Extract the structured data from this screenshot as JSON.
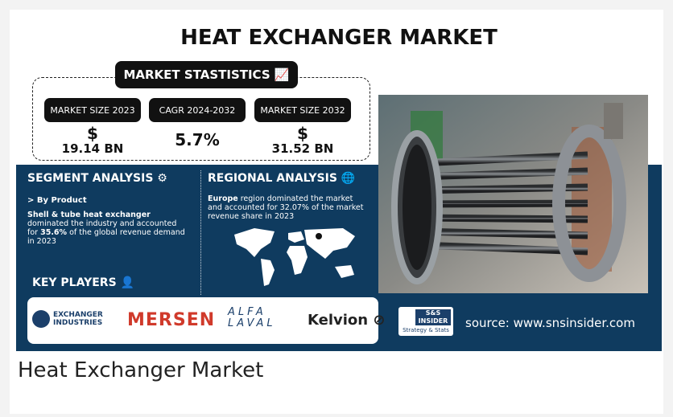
{
  "infographic": {
    "title": "HEAT EXCHANGER MARKET",
    "statistics": {
      "heading": "MARKET STASTISTICS",
      "items": [
        {
          "label": "MARKET SIZE 2023",
          "symbol": "$",
          "value": "19.14 BN"
        },
        {
          "label": "CAGR 2024-2032",
          "value": "5.7%"
        },
        {
          "label": "MARKET SIZE 2032",
          "symbol": "$",
          "value": "31.52 BN"
        }
      ]
    },
    "segment_analysis": {
      "heading": "SEGMENT ANALYSIS",
      "subheading": "> By Product",
      "text": [
        {
          "text": "Shell & tube heat exchanger",
          "bold": true
        },
        {
          "text": " dominated the industry and accounted for ",
          "bold": false
        },
        {
          "text": "35.6%",
          "bold": true
        },
        {
          "text": " of the global revenue demand in 2023",
          "bold": false
        }
      ]
    },
    "regional_analysis": {
      "heading": "REGIONAL ANALYSIS",
      "text": [
        {
          "text": "Europe",
          "bold": true
        },
        {
          "text": " region dominated the market and accounted for 32.07% of the market revenue share in 2023",
          "bold": false
        }
      ]
    },
    "key_players": {
      "heading": "KEY PLAYERS",
      "logos": [
        "EXCHANGER",
        "INDUSTRIES",
        "MERSEN",
        "ALFA",
        "LAVAL",
        "Kelvion"
      ]
    },
    "brand": {
      "name": "S&S INSIDER",
      "tagline": "Strategy & Stats"
    },
    "source": "source: www.snsinsider.com"
  },
  "caption": "Heat Exchanger Market"
}
